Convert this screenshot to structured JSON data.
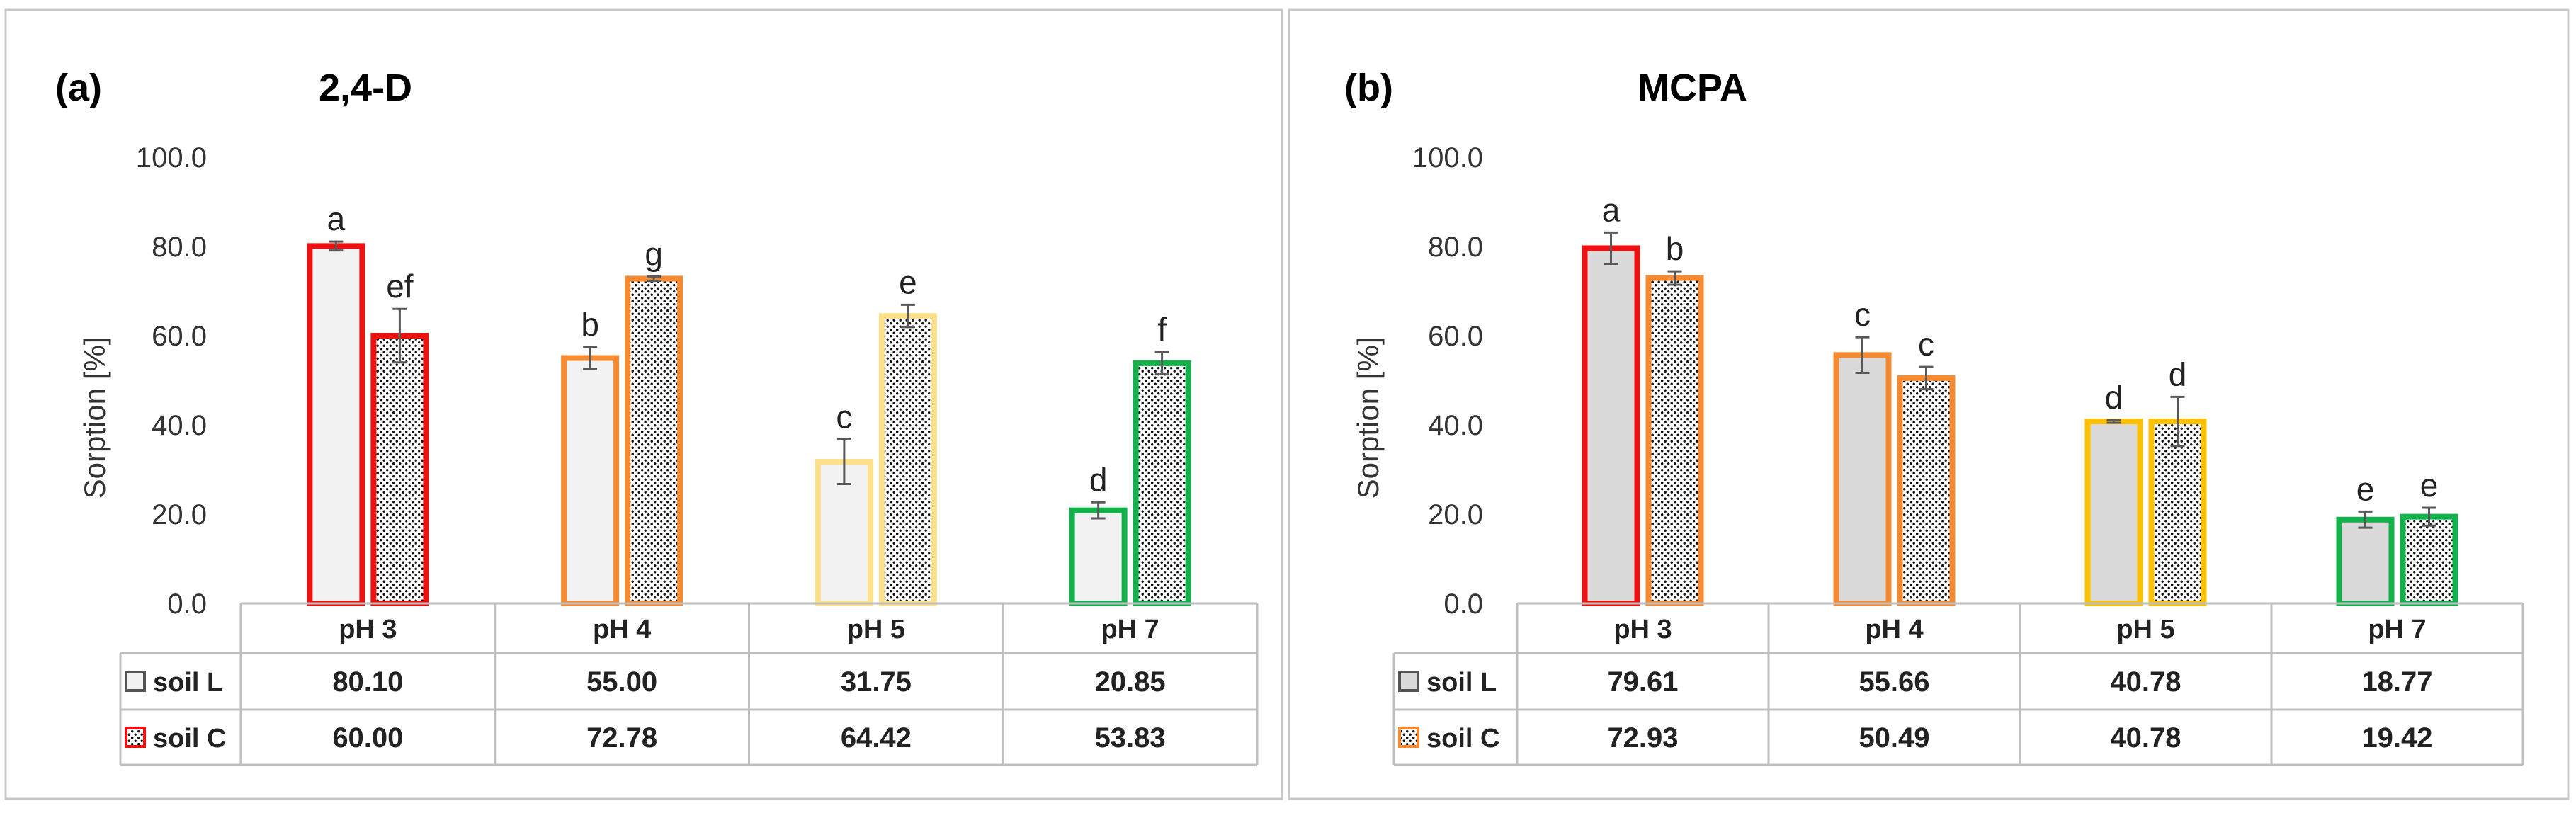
{
  "chart_data": [
    {
      "type": "bar",
      "panel_label": "(a)",
      "title": "2,4-D",
      "ylabel": "Sorption  [%]",
      "ylim": [
        0,
        100
      ],
      "yticks": [
        "0.0",
        "20.0",
        "40.0",
        "60.0",
        "80.0",
        "100.0"
      ],
      "categories": [
        "pH 3",
        "pH 4",
        "pH 5",
        "pH 7"
      ],
      "category_colors": [
        "#EE1111",
        "#F58A33",
        "#FFE08A",
        "#14B04B"
      ],
      "series": [
        {
          "name": "soil L",
          "pattern": "plain",
          "fill": "#F2F2F2",
          "values": [
            80.1,
            55.0,
            31.75,
            20.85
          ],
          "errors": [
            1.0,
            2.5,
            5.0,
            1.8
          ],
          "letters": [
            "a",
            "b",
            "c",
            "d"
          ]
        },
        {
          "name": "soil C",
          "pattern": "dotted",
          "fill": "#FFFFFF",
          "values": [
            60.0,
            72.78,
            64.42,
            53.83
          ],
          "errors": [
            6.0,
            0.5,
            2.5,
            2.5
          ],
          "letters": [
            "ef",
            "g",
            "e",
            "f"
          ]
        }
      ],
      "legend_key_colors": [
        "#555555",
        "#EE1111"
      ],
      "table": {
        "headers": [
          "pH 3",
          "pH 4",
          "pH 5",
          "pH 7"
        ],
        "rows": [
          {
            "label": "soil L",
            "values": [
              "80.10",
              "55.00",
              "31.75",
              "20.85"
            ]
          },
          {
            "label": "soil C",
            "values": [
              "60.00",
              "72.78",
              "64.42",
              "53.83"
            ]
          }
        ]
      }
    },
    {
      "type": "bar",
      "panel_label": "(b)",
      "title": "MCPA",
      "ylabel": "Sorption [%]",
      "ylim": [
        0,
        100
      ],
      "yticks": [
        "0.0",
        "20.0",
        "40.0",
        "60.0",
        "80.0",
        "100.0"
      ],
      "categories": [
        "pH 3",
        "pH 4",
        "pH 5",
        "pH 7"
      ],
      "series": [
        {
          "name": "soil L",
          "pattern": "plain",
          "fill": "#D9D9D9",
          "values": [
            79.61,
            55.66,
            40.78,
            18.77
          ],
          "errors": [
            3.5,
            4.0,
            0.3,
            1.8
          ],
          "letters": [
            "a",
            "c",
            "d",
            "e"
          ],
          "border_colors": [
            "#EE1111",
            "#F58A33",
            "#FFC000",
            "#14B04B"
          ]
        },
        {
          "name": "soil C",
          "pattern": "dotted",
          "fill": "#FFFFFF",
          "values": [
            72.93,
            50.49,
            40.78,
            19.42
          ],
          "errors": [
            1.5,
            2.5,
            5.5,
            2.0
          ],
          "letters": [
            "b",
            "c",
            "d",
            "e"
          ],
          "border_colors": [
            "#F58A33",
            "#F58A33",
            "#FFC000",
            "#14B04B"
          ]
        }
      ],
      "legend_key_colors": [
        "#555555",
        "#F58A33"
      ],
      "table": {
        "headers": [
          "pH 3",
          "pH 4",
          "pH 5",
          "pH 7"
        ],
        "rows": [
          {
            "label": "soil L",
            "values": [
              "79.61",
              "55.66",
              "40.78",
              "18.77"
            ]
          },
          {
            "label": "soil C",
            "values": [
              "72.93",
              "50.49",
              "40.78",
              "19.42"
            ]
          }
        ]
      }
    }
  ]
}
